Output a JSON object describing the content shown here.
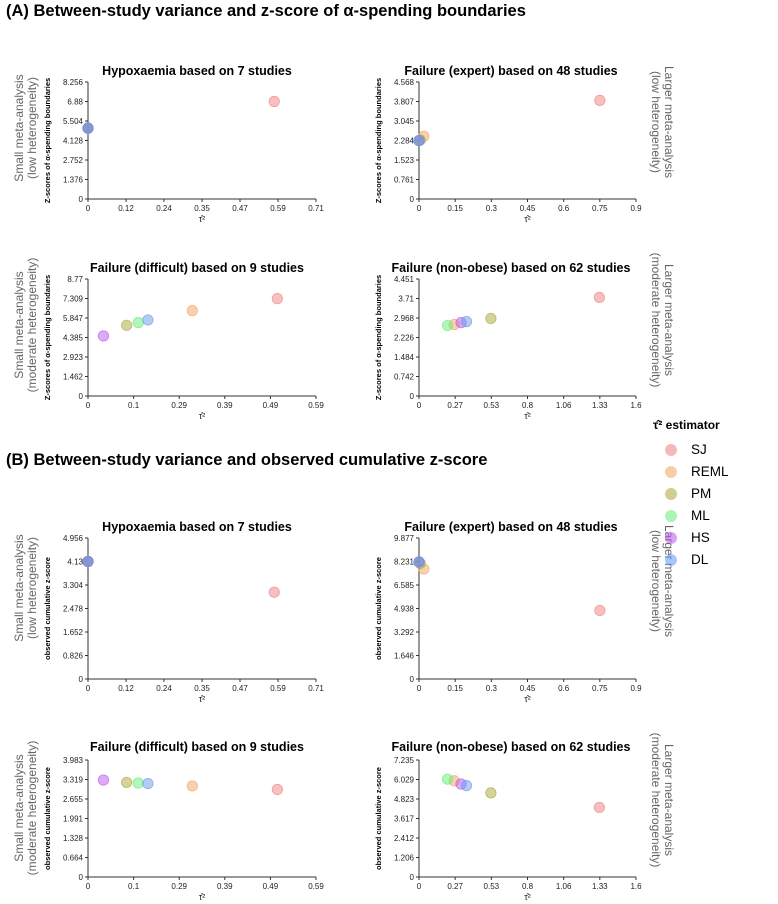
{
  "sections": [
    {
      "title": "(A) Between-study variance and z-score of α-spending boundaries"
    },
    {
      "title": "(B) Between-study variance and observed cumulative z-score"
    }
  ],
  "row_labels": {
    "small_low": [
      "Small meta-analysis",
      "(low heterogeneity)"
    ],
    "small_mod": [
      "Small meta-analysis",
      "(moderate heterogeneity)"
    ],
    "large_low": [
      "Larger meta-analysis",
      "(low heterogeneity)"
    ],
    "large_mod": [
      "Larger meta-analysis",
      "(moderate heterogeneity)"
    ]
  },
  "legend": {
    "title": "τ̂² estimator",
    "items": [
      {
        "label": "SJ",
        "color": "#f08080"
      },
      {
        "label": "REML",
        "color": "#f4a460"
      },
      {
        "label": "PM",
        "color": "#a8a838"
      },
      {
        "label": "ML",
        "color": "#66ee77"
      },
      {
        "label": "HS",
        "color": "#bb55ee"
      },
      {
        "label": "DL",
        "color": "#6699ee"
      }
    ]
  },
  "chart_data": [
    {
      "type": "scatter",
      "title": "Hypoxaemia based on 7 studies",
      "xlabel": "τ̂²",
      "ylabel": "Z-scores of α-spending boundaries",
      "xticks": [
        "0",
        "0.12",
        "0.24",
        "0.35",
        "0.47",
        "0.59",
        "0.71"
      ],
      "xlim": [
        0,
        0.71
      ],
      "yticks": [
        "0",
        "1.376",
        "2.752",
        "4.128",
        "5.504",
        "6.88",
        "8.256"
      ],
      "ylim": [
        0,
        8.256
      ],
      "points": [
        {
          "series": "SJ",
          "x": 0.58,
          "y": 6.88
        },
        {
          "series": "REML",
          "x": 0,
          "y": 5.0
        },
        {
          "series": "PM",
          "x": 0,
          "y": 5.0
        },
        {
          "series": "ML",
          "x": 0,
          "y": 5.0
        },
        {
          "series": "HS",
          "x": 0,
          "y": 5.0
        },
        {
          "series": "DL",
          "x": 0,
          "y": 5.0
        }
      ]
    },
    {
      "type": "scatter",
      "title": "Failure (expert) based on 48 studies",
      "xlabel": "τ̂²",
      "ylabel": "Z-scores of α-spending boundaries",
      "xticks": [
        "0",
        "0.15",
        "0.3",
        "0.45",
        "0.6",
        "0.75",
        "0.9"
      ],
      "xlim": [
        0,
        0.9
      ],
      "yticks": [
        "0",
        "0.761",
        "1.523",
        "2.284",
        "3.045",
        "3.807",
        "4.568"
      ],
      "ylim": [
        0,
        4.568
      ],
      "points": [
        {
          "series": "SJ",
          "x": 0.75,
          "y": 3.85
        },
        {
          "series": "REML",
          "x": 0.02,
          "y": 2.45
        },
        {
          "series": "PM",
          "x": 0.005,
          "y": 2.3
        },
        {
          "series": "ML",
          "x": 0,
          "y": 2.28
        },
        {
          "series": "HS",
          "x": 0,
          "y": 2.28
        },
        {
          "series": "DL",
          "x": 0,
          "y": 2.28
        }
      ]
    },
    {
      "type": "scatter",
      "title": "Failure (difficult) based on 9 studies",
      "xlabel": "τ̂²",
      "ylabel": "Z-scores of α-spending boundaries",
      "xticks": [
        "0",
        "0.1",
        "0.29",
        "0.39",
        "0.49",
        "0.59"
      ],
      "xlim": [
        0,
        0.59
      ],
      "yticks": [
        "0",
        "1.462",
        "2.923",
        "4.385",
        "5.847",
        "7.309",
        "8.77"
      ],
      "ylim": [
        0,
        8.77
      ],
      "points": [
        {
          "series": "SJ",
          "x": 0.49,
          "y": 7.3
        },
        {
          "series": "REML",
          "x": 0.27,
          "y": 6.4
        },
        {
          "series": "PM",
          "x": 0.1,
          "y": 5.3
        },
        {
          "series": "ML",
          "x": 0.13,
          "y": 5.5
        },
        {
          "series": "HS",
          "x": 0.04,
          "y": 4.5
        },
        {
          "series": "DL",
          "x": 0.155,
          "y": 5.7
        }
      ]
    },
    {
      "type": "scatter",
      "title": "Failure (non-obese) based on 62 studies",
      "xlabel": "τ̂²",
      "ylabel": "Z-scores of α-spending boundaries",
      "xticks": [
        "0",
        "0.27",
        "0.53",
        "0.8",
        "1.06",
        "1.33",
        "1.6"
      ],
      "xlim": [
        0,
        1.6
      ],
      "yticks": [
        "0",
        "0.742",
        "1.484",
        "2.226",
        "2.968",
        "3.71",
        "4.451"
      ],
      "ylim": [
        0,
        4.451
      ],
      "points": [
        {
          "series": "SJ",
          "x": 1.33,
          "y": 3.75
        },
        {
          "series": "REML",
          "x": 0.26,
          "y": 2.72
        },
        {
          "series": "PM",
          "x": 0.53,
          "y": 2.95
        },
        {
          "series": "ML",
          "x": 0.21,
          "y": 2.68
        },
        {
          "series": "HS",
          "x": 0.31,
          "y": 2.79
        },
        {
          "series": "DL",
          "x": 0.35,
          "y": 2.83
        }
      ]
    },
    {
      "type": "scatter",
      "title": "Hypoxaemia based on 7 studies",
      "xlabel": "τ̂²",
      "ylabel": "observed cumulative z-score",
      "xticks": [
        "0",
        "0.12",
        "0.24",
        "0.35",
        "0.47",
        "0.59",
        "0.71"
      ],
      "xlim": [
        0,
        0.71
      ],
      "yticks": [
        "0",
        "0.826",
        "1.652",
        "2.478",
        "3.304",
        "4.13",
        "4.956"
      ],
      "ylim": [
        0,
        4.956
      ],
      "points": [
        {
          "series": "SJ",
          "x": 0.58,
          "y": 3.05
        },
        {
          "series": "REML",
          "x": 0,
          "y": 4.13
        },
        {
          "series": "PM",
          "x": 0,
          "y": 4.13
        },
        {
          "series": "ML",
          "x": 0,
          "y": 4.13
        },
        {
          "series": "HS",
          "x": 0,
          "y": 4.13
        },
        {
          "series": "DL",
          "x": 0,
          "y": 4.13
        }
      ]
    },
    {
      "type": "scatter",
      "title": "Failure (expert) based on 48 studies",
      "xlabel": "τ̂²",
      "ylabel": "observed cumulative z-score",
      "xticks": [
        "0",
        "0.15",
        "0.3",
        "0.45",
        "0.6",
        "0.75",
        "0.9"
      ],
      "xlim": [
        0,
        0.9
      ],
      "yticks": [
        "0",
        "1.646",
        "3.292",
        "4.938",
        "6.585",
        "8.231",
        "9.877"
      ],
      "ylim": [
        0,
        9.877
      ],
      "points": [
        {
          "series": "SJ",
          "x": 0.75,
          "y": 4.8
        },
        {
          "series": "REML",
          "x": 0.02,
          "y": 7.7
        },
        {
          "series": "PM",
          "x": 0.005,
          "y": 8.1
        },
        {
          "series": "ML",
          "x": 0,
          "y": 8.2
        },
        {
          "series": "HS",
          "x": 0,
          "y": 8.2
        },
        {
          "series": "DL",
          "x": 0,
          "y": 8.2
        }
      ]
    },
    {
      "type": "scatter",
      "title": "Failure (difficult) based on 9 studies",
      "xlabel": "τ̂²",
      "ylabel": "observed cumulative z-score",
      "xticks": [
        "0",
        "0.1",
        "0.29",
        "0.39",
        "0.49",
        "0.59"
      ],
      "xlim": [
        0,
        0.59
      ],
      "yticks": [
        "0",
        "0.664",
        "1.328",
        "1.991",
        "2.655",
        "3.319",
        "3.983"
      ],
      "ylim": [
        0,
        3.983
      ],
      "points": [
        {
          "series": "SJ",
          "x": 0.49,
          "y": 2.98
        },
        {
          "series": "REML",
          "x": 0.27,
          "y": 3.1
        },
        {
          "series": "PM",
          "x": 0.1,
          "y": 3.22
        },
        {
          "series": "ML",
          "x": 0.13,
          "y": 3.2
        },
        {
          "series": "HS",
          "x": 0.04,
          "y": 3.3
        },
        {
          "series": "DL",
          "x": 0.155,
          "y": 3.18
        }
      ]
    },
    {
      "type": "scatter",
      "title": "Failure (non-obese) based on 62 studies",
      "xlabel": "τ̂²",
      "ylabel": "observed cumulative z-score",
      "xticks": [
        "0",
        "0.27",
        "0.53",
        "0.8",
        "1.06",
        "1.33",
        "1.6"
      ],
      "xlim": [
        0,
        1.6
      ],
      "yticks": [
        "0",
        "1.206",
        "2.412",
        "3.617",
        "4.823",
        "6.029",
        "7.235"
      ],
      "ylim": [
        0,
        7.235
      ],
      "points": [
        {
          "series": "SJ",
          "x": 1.33,
          "y": 4.3
        },
        {
          "series": "REML",
          "x": 0.26,
          "y": 5.95
        },
        {
          "series": "PM",
          "x": 0.53,
          "y": 5.2
        },
        {
          "series": "ML",
          "x": 0.21,
          "y": 6.05
        },
        {
          "series": "HS",
          "x": 0.31,
          "y": 5.75
        },
        {
          "series": "DL",
          "x": 0.35,
          "y": 5.65
        }
      ]
    }
  ]
}
